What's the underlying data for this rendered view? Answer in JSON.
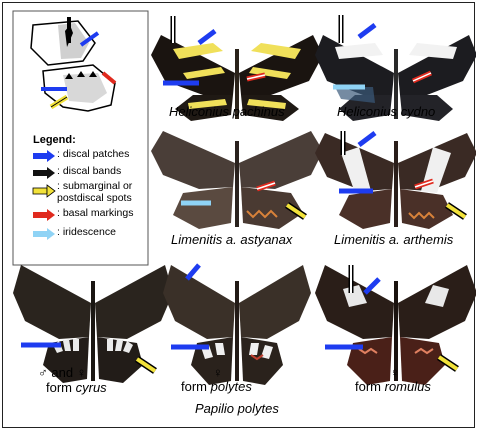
{
  "legend": {
    "title": "Legend:",
    "items": [
      {
        "key": "blue",
        "color": "#1e3cf0",
        "label": ": discal patches"
      },
      {
        "key": "black",
        "color": "#111111",
        "label": ": discal bands"
      },
      {
        "key": "yellow",
        "color": "#f2e23a",
        "label_line1": ": submarginal or",
        "label_line2": "postdiscal spots"
      },
      {
        "key": "red",
        "color": "#e02a1e",
        "label": ": basal markings"
      },
      {
        "key": "cyan",
        "color": "#8fd3f5",
        "label": ": iridescence"
      }
    ]
  },
  "species": {
    "h_pachinus": {
      "label": "Heliconius pachinus"
    },
    "h_cydno": {
      "label": "Heliconius cydno"
    },
    "l_astyanax": {
      "label": "Limenitis a. astyanax"
    },
    "l_arthemis": {
      "label": "Limenitis a. arthemis"
    },
    "p_cyrus": {
      "line1_prefix": "♂ and ♀",
      "line2_prefix": "form ",
      "line2_name": "cyrus"
    },
    "p_polytes": {
      "line1": "♀",
      "line2_prefix": "form ",
      "line2_name": "polytes"
    },
    "p_romulus": {
      "line1": "♀",
      "line2_prefix": "form ",
      "line2_name": "romulus"
    },
    "papilio_group": {
      "label": "Papilio polytes"
    }
  }
}
